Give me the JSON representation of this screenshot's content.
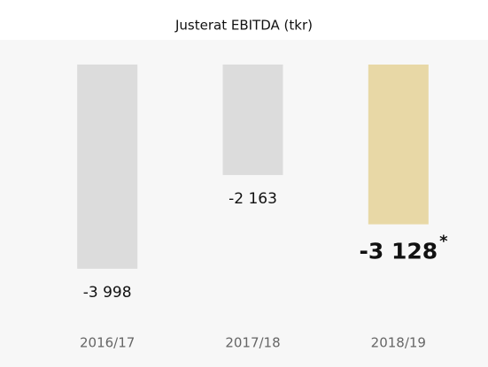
{
  "chart_data": {
    "type": "bar",
    "title": "Justerat EBITDA (tkr)",
    "categories": [
      "2016/17",
      "2017/18",
      "2018/19"
    ],
    "values": [
      -3998,
      -2163,
      -3128
    ],
    "value_labels": [
      "-3 998",
      "-2 163",
      "-3 128"
    ],
    "colors": [
      "#dcdcdc",
      "#dcdcdc",
      "#e8d8a6"
    ],
    "highlight_category": "2018/19",
    "annotation": "*",
    "ylim": [
      -4000,
      0
    ]
  }
}
